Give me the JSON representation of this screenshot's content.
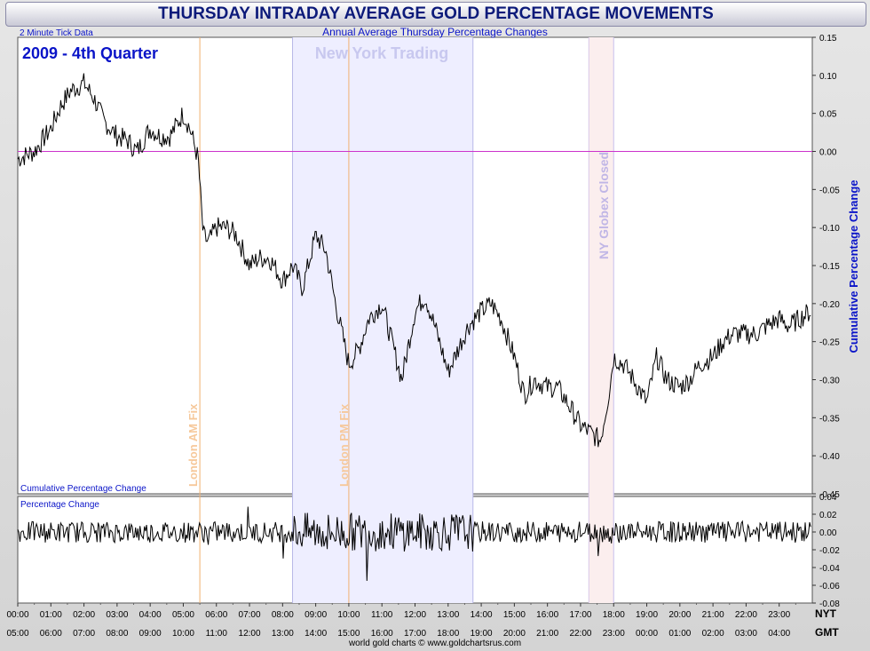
{
  "header": {
    "title": "THURSDAY INTRADAY AVERAGE GOLD PERCENTAGE MOVEMENTS",
    "subtitle": "Annual Average Thursday Percentage Changes",
    "tick_note": "2 Minute Tick Data",
    "period": "2009 - 4th Quarter",
    "footer": "world gold charts © www.goldchartsrus.com"
  },
  "colors": {
    "line": "#000000",
    "zero_line": "#cc33cc",
    "fix_line": "#f0b070",
    "ny_session": "#eeeeff",
    "globex_band": "#fbeeee",
    "label_blue": "#0a14c8",
    "ny_label": "#c8c8ef",
    "fix_label": "#f6c89a",
    "globex_label": "#c0b6e6"
  },
  "chart_data": [
    {
      "type": "line",
      "title": "Cumulative Percentage Change",
      "ylabel": "Cumulative Percentage Change",
      "ylim": [
        -0.45,
        0.15
      ],
      "yticks": [
        "0.15",
        "0.10",
        "0.05",
        "0.00",
        "-0.05",
        "-0.10",
        "-0.15",
        "-0.20",
        "-0.25",
        "-0.30",
        "-0.35",
        "-0.40",
        "-0.45"
      ],
      "x_label_nyt": "NYT",
      "x_label_gmt": "GMT",
      "xticks_nyt": [
        "00:00",
        "01:00",
        "02:00",
        "03:00",
        "04:00",
        "05:00",
        "06:00",
        "07:00",
        "08:00",
        "09:00",
        "10:00",
        "11:00",
        "12:00",
        "13:00",
        "14:00",
        "15:00",
        "16:00",
        "17:00",
        "18:00",
        "19:00",
        "20:00",
        "21:00",
        "22:00",
        "23:00"
      ],
      "xticks_gmt": [
        "05:00",
        "06:00",
        "07:00",
        "08:00",
        "09:00",
        "10:00",
        "11:00",
        "12:00",
        "13:00",
        "14:00",
        "15:00",
        "16:00",
        "17:00",
        "18:00",
        "19:00",
        "20:00",
        "21:00",
        "22:00",
        "23:00",
        "00:00",
        "01:00",
        "02:00",
        "03:00",
        "04:00"
      ],
      "x_hours": [
        0,
        0.5,
        1,
        1.3,
        1.6,
        2,
        2.3,
        2.6,
        3,
        3.3,
        3.6,
        4,
        4.3,
        4.6,
        5,
        5.2,
        5.45,
        5.6,
        5.75,
        6,
        6.3,
        6.6,
        7,
        7.3,
        7.6,
        8,
        8.3,
        8.6,
        9,
        9.3,
        9.6,
        9.8,
        10,
        10.3,
        10.6,
        11,
        11.3,
        11.6,
        12,
        12.3,
        12.6,
        13,
        13.3,
        13.6,
        14,
        14.3,
        14.6,
        15,
        15.3,
        15.6,
        16,
        16.3,
        16.6,
        17,
        17.3,
        17.6,
        17.85,
        18,
        18.3,
        18.6,
        19,
        19.3,
        19.6,
        20,
        20.3,
        20.6,
        21,
        21.3,
        21.6,
        22,
        22.3,
        22.6,
        23,
        23.3,
        23.6,
        23.95
      ],
      "values": [
        -0.01,
        0.0,
        0.03,
        0.06,
        0.08,
        0.09,
        0.07,
        0.04,
        0.02,
        0.015,
        0.0,
        0.03,
        0.02,
        0.02,
        0.05,
        0.03,
        -0.01,
        -0.11,
        -0.12,
        -0.1,
        -0.1,
        -0.11,
        -0.15,
        -0.14,
        -0.14,
        -0.17,
        -0.15,
        -0.18,
        -0.11,
        -0.13,
        -0.2,
        -0.24,
        -0.28,
        -0.26,
        -0.22,
        -0.2,
        -0.25,
        -0.3,
        -0.21,
        -0.19,
        -0.23,
        -0.29,
        -0.26,
        -0.23,
        -0.21,
        -0.2,
        -0.22,
        -0.27,
        -0.32,
        -0.3,
        -0.31,
        -0.31,
        -0.33,
        -0.36,
        -0.37,
        -0.38,
        -0.32,
        -0.27,
        -0.28,
        -0.3,
        -0.33,
        -0.27,
        -0.3,
        -0.31,
        -0.3,
        -0.28,
        -0.27,
        -0.25,
        -0.24,
        -0.24,
        -0.24,
        -0.23,
        -0.22,
        -0.23,
        -0.22,
        -0.21
      ]
    },
    {
      "type": "line",
      "title": "Percentage Change",
      "ylim": [
        -0.08,
        0.04
      ],
      "yticks": [
        "0.04",
        "0.02",
        "0.00",
        "-0.02",
        "-0.04",
        "-0.06",
        "-0.08"
      ],
      "note": "2-minute tick oscillation, typical amplitude about ±0.02, spikes to ±0.05"
    }
  ],
  "annotations": {
    "ny_trading": "New York Trading",
    "ny_session_hours": [
      8.3,
      13.75
    ],
    "london_am_fix": "London AM Fix",
    "london_am_hour": 5.5,
    "london_pm_fix": "London PM Fix",
    "london_pm_hour": 10.0,
    "globex_closed": "NY Globex Closed",
    "globex_hours": [
      17.25,
      18.0
    ]
  }
}
